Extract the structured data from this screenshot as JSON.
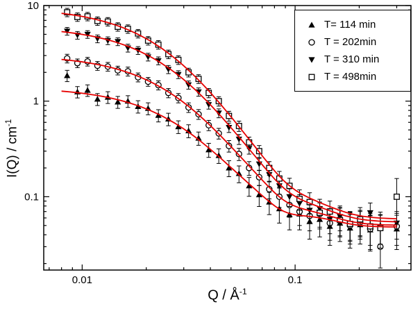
{
  "figure": {
    "background": "#ffffff"
  },
  "axes": {
    "x_base": "Q / Å",
    "x_sup": "-1",
    "y_base": "I(Q) / cm",
    "y_sup": "-1"
  },
  "chart_data": {
    "type": "scatter",
    "title": "",
    "xlabel": "Q / Å⁻¹",
    "ylabel": "I(Q) / cm⁻¹",
    "x_scale": "log",
    "y_scale": "log",
    "xlim": [
      0.0066,
      0.35
    ],
    "ylim": [
      0.0171,
      10
    ],
    "grid": false,
    "legend_position": "top-right",
    "marker_color": "#000000",
    "fit_color": "#e60000",
    "fit_range": [
      0.008,
      0.3
    ],
    "x_major_ticks": [
      {
        "value": 0.01,
        "label": "0.01"
      },
      {
        "value": 0.1,
        "label": "0.1"
      }
    ],
    "y_major_ticks": [
      {
        "value": 0.1,
        "label": "0.1"
      },
      {
        "value": 1,
        "label": "1"
      },
      {
        "value": 10,
        "label": "10"
      }
    ],
    "q": [
      0.0085,
      0.0095,
      0.0106,
      0.0118,
      0.0132,
      0.0147,
      0.0164,
      0.0183,
      0.0204,
      0.0228,
      0.0254,
      0.0283,
      0.0316,
      0.0352,
      0.0393,
      0.0438,
      0.0489,
      0.0545,
      0.0608,
      0.0678,
      0.0756,
      0.0843,
      0.0941,
      0.1049,
      0.117,
      0.1305,
      0.1456,
      0.1624,
      0.1811,
      0.202,
      0.2253,
      0.2513,
      0.3
    ],
    "series": [
      {
        "label": "T= 114 min",
        "marker": "triangle-up-filled",
        "i": [
          1.85,
          1.25,
          1.3,
          1.05,
          1.1,
          0.98,
          1.0,
          0.88,
          0.84,
          0.71,
          0.65,
          0.54,
          0.49,
          0.41,
          0.31,
          0.27,
          0.2,
          0.175,
          0.13,
          0.105,
          0.088,
          0.075,
          0.065,
          0.066,
          0.055,
          0.058,
          0.049,
          0.053,
          0.047,
          0.051,
          0.045,
          0.05,
          0.046
        ],
        "err": [
          0.25,
          0.17,
          0.18,
          0.15,
          0.155,
          0.14,
          0.14,
          0.13,
          0.12,
          0.104,
          0.097,
          0.082,
          0.076,
          0.065,
          0.052,
          0.047,
          0.038,
          0.035,
          0.029,
          0.026,
          0.023,
          0.022,
          0.02,
          0.021,
          0.019,
          0.02,
          0.018,
          0.019,
          0.018,
          0.019,
          0.018,
          0.019,
          0.018
        ],
        "fit": {
          "A": 1.35,
          "xi": 28,
          "bg": 0.048,
          "dip_amp": 0.12,
          "dip_q": 0.085,
          "hump_amp": 0.12,
          "hump_q": 0.13
        }
      },
      {
        "label": "T = 202min",
        "marker": "circle-open",
        "i": [
          2.8,
          2.5,
          2.6,
          2.35,
          2.3,
          2.1,
          2.05,
          1.78,
          1.6,
          1.47,
          1.22,
          1.08,
          0.86,
          0.73,
          0.56,
          0.46,
          0.34,
          0.28,
          0.2,
          0.16,
          0.12,
          0.1,
          0.082,
          0.07,
          0.063,
          0.066,
          0.053,
          0.058,
          0.05,
          0.054,
          0.046,
          0.03,
          0.049
        ],
        "err": [
          0.29,
          0.26,
          0.27,
          0.25,
          0.24,
          0.22,
          0.22,
          0.19,
          0.17,
          0.16,
          0.135,
          0.121,
          0.099,
          0.086,
          0.069,
          0.059,
          0.047,
          0.041,
          0.033,
          0.029,
          0.025,
          0.023,
          0.021,
          0.02,
          0.019,
          0.02,
          0.018,
          0.019,
          0.018,
          0.018,
          0.018,
          0.016,
          0.018
        ],
        "fit": {
          "A": 3.0,
          "xi": 30,
          "bg": 0.05,
          "dip_amp": 0.12,
          "dip_q": 0.085,
          "hump_amp": 0.12,
          "hump_q": 0.13
        }
      },
      {
        "label": "T = 310 min",
        "marker": "triangle-down-filled",
        "i": [
          5.4,
          4.9,
          5.0,
          4.5,
          4.3,
          4.2,
          3.6,
          3.4,
          2.9,
          2.65,
          2.15,
          1.9,
          1.48,
          1.25,
          0.92,
          0.75,
          0.53,
          0.4,
          0.32,
          0.22,
          0.17,
          0.13,
          0.1,
          0.085,
          0.072,
          0.075,
          0.058,
          0.062,
          0.052,
          0.055,
          0.068,
          0.048,
          0.053
        ],
        "err": [
          0.5,
          0.45,
          0.46,
          0.42,
          0.4,
          0.39,
          0.34,
          0.32,
          0.27,
          0.25,
          0.21,
          0.18,
          0.145,
          0.125,
          0.095,
          0.08,
          0.06,
          0.048,
          0.041,
          0.032,
          0.027,
          0.024,
          0.021,
          0.02,
          0.018,
          0.019,
          0.017,
          0.018,
          0.017,
          0.017,
          0.018,
          0.016,
          0.017
        ],
        "fit": {
          "A": 6.0,
          "xi": 32,
          "bg": 0.054,
          "dip_amp": 0.12,
          "dip_q": 0.085,
          "hump_amp": 0.12,
          "hump_q": 0.13
        }
      },
      {
        "label": "T = 498min",
        "marker": "square-open",
        "i": [
          8.5,
          7.6,
          7.7,
          6.9,
          6.8,
          6.0,
          5.7,
          5.1,
          4.3,
          3.9,
          3.1,
          2.7,
          2.0,
          1.71,
          1.22,
          1.0,
          0.7,
          0.55,
          0.37,
          0.3,
          0.2,
          0.155,
          0.13,
          0.095,
          0.088,
          0.068,
          0.07,
          0.057,
          0.052,
          0.058,
          0.049,
          0.047,
          0.1
        ],
        "err": [
          0.86,
          0.77,
          0.78,
          0.7,
          0.69,
          0.61,
          0.58,
          0.52,
          0.44,
          0.4,
          0.32,
          0.28,
          0.21,
          0.18,
          0.135,
          0.113,
          0.083,
          0.068,
          0.05,
          0.043,
          0.033,
          0.029,
          0.026,
          0.023,
          0.022,
          0.02,
          0.02,
          0.019,
          0.018,
          0.019,
          0.018,
          0.018,
          0.055
        ],
        "fit": {
          "A": 9.5,
          "xi": 34,
          "bg": 0.058,
          "dip_amp": 0.12,
          "dip_q": 0.085,
          "hump_amp": 0.12,
          "hump_q": 0.13
        }
      }
    ]
  }
}
